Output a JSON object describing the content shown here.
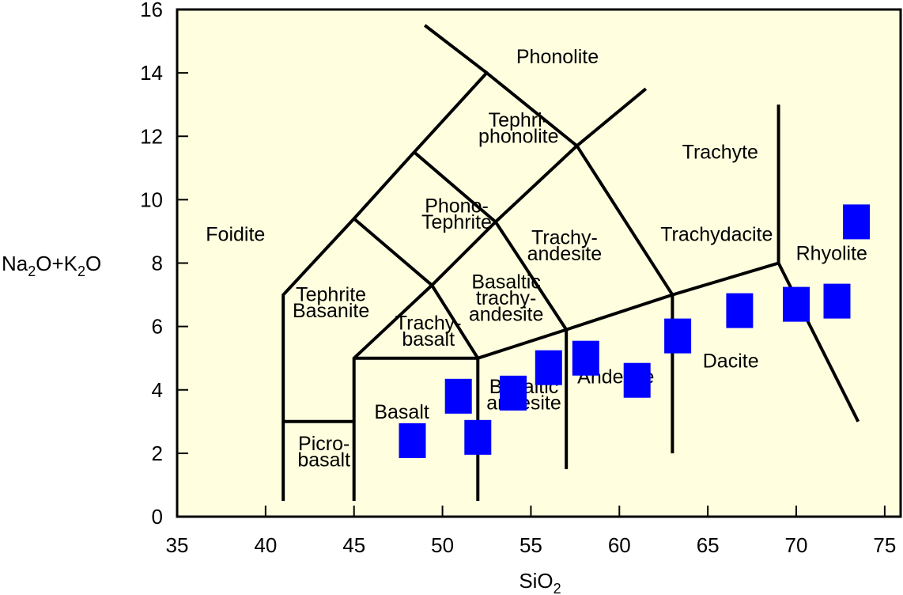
{
  "chart_data": {
    "type": "scatter",
    "title": "",
    "xlabel": {
      "main": "SiO",
      "sub": "2"
    },
    "ylabel": {
      "parts": [
        {
          "text": "Na",
          "sub": false
        },
        {
          "text": "2",
          "sub": true
        },
        {
          "text": "O+K",
          "sub": false
        },
        {
          "text": "2",
          "sub": true
        },
        {
          "text": "O",
          "sub": false
        }
      ]
    },
    "xlim": [
      35,
      75.9
    ],
    "ylim": [
      0,
      16
    ],
    "xticks": [
      35,
      40,
      45,
      50,
      55,
      60,
      65,
      70,
      75
    ],
    "yticks": [
      0,
      2,
      4,
      6,
      8,
      10,
      12,
      14,
      16
    ],
    "colors": {
      "background": "#ffffe0",
      "marker": "#0000ff",
      "lines": "#000000"
    },
    "boundaries": [
      [
        [
          41,
          0.5
        ],
        [
          41,
          7
        ],
        [
          45,
          9.4
        ],
        [
          48.4,
          11.5
        ],
        [
          52.5,
          14
        ],
        [
          57.6,
          11.7
        ],
        [
          63,
          7
        ],
        [
          63,
          2
        ]
      ],
      [
        [
          41,
          3
        ],
        [
          45,
          3
        ]
      ],
      [
        [
          45,
          0.5
        ],
        [
          45,
          5
        ],
        [
          49.4,
          7.3
        ],
        [
          53,
          9.3
        ],
        [
          57.6,
          11.7
        ],
        [
          61.5,
          13.5
        ]
      ],
      [
        [
          52,
          0.5
        ],
        [
          52,
          5
        ],
        [
          57,
          5.9
        ],
        [
          63,
          7
        ],
        [
          69,
          8
        ],
        [
          69,
          13
        ]
      ],
      [
        [
          45,
          5
        ],
        [
          52,
          5
        ]
      ],
      [
        [
          57,
          1.5
        ],
        [
          57,
          5.9
        ],
        [
          53,
          9.3
        ],
        [
          48.4,
          11.5
        ]
      ],
      [
        [
          52,
          5
        ],
        [
          49.4,
          7.3
        ],
        [
          45,
          9.4
        ]
      ],
      [
        [
          69,
          8
        ],
        [
          73.5,
          3
        ]
      ],
      [
        [
          52.5,
          14
        ],
        [
          49,
          15.5
        ]
      ]
    ],
    "fields": [
      {
        "name": "Phonolite",
        "lines": [
          "Phonolite"
        ],
        "x": 56.5,
        "y": 14.3
      },
      {
        "name": "Tephri-phonolite",
        "lines": [
          "Tephri-",
          "phonolite"
        ],
        "x": 54.3,
        "y": 12.3
      },
      {
        "name": "Trachyte",
        "lines": [
          "Trachyte"
        ],
        "x": 65.7,
        "y": 11.3
      },
      {
        "name": "Phono-Tephrite",
        "lines": [
          "Phono-",
          "Tephrite"
        ],
        "x": 50.8,
        "y": 9.6
      },
      {
        "name": "Foidite",
        "lines": [
          "Foidite"
        ],
        "x": 38.3,
        "y": 8.7
      },
      {
        "name": "Trachy-andesite",
        "lines": [
          "Trachy-",
          "andesite"
        ],
        "x": 56.9,
        "y": 8.6
      },
      {
        "name": "Trachydacite",
        "lines": [
          "Trachydacite"
        ],
        "x": 65.5,
        "y": 8.7
      },
      {
        "name": "Rhyolite",
        "lines": [
          "Rhyolite"
        ],
        "x": 72,
        "y": 8.1
      },
      {
        "name": "Tephrite Basanite",
        "lines": [
          "Tephrite",
          "Basanite"
        ],
        "x": 43.7,
        "y": 6.8
      },
      {
        "name": "Basaltic trachy-andesite",
        "lines": [
          "Basaltic",
          "trachy-",
          "andesite"
        ],
        "x": 53.6,
        "y": 7.2
      },
      {
        "name": "Trachy-basalt",
        "lines": [
          "Trachy-",
          "basalt"
        ],
        "x": 49.2,
        "y": 5.9
      },
      {
        "name": "Dacite",
        "lines": [
          "Dacite"
        ],
        "x": 66.3,
        "y": 4.7
      },
      {
        "name": "Andesite",
        "lines": [
          "Andesite"
        ],
        "x": 59.8,
        "y": 4.2
      },
      {
        "name": "Basaltic andesite",
        "lines": [
          "Basaltic",
          "andesite"
        ],
        "x": 54.6,
        "y": 3.9
      },
      {
        "name": "Basalt",
        "lines": [
          "Basalt"
        ],
        "x": 47.7,
        "y": 3.1
      },
      {
        "name": "Picro-basalt",
        "lines": [
          "Picro-",
          "basalt"
        ],
        "x": 43.3,
        "y": 2.1
      }
    ],
    "points": [
      {
        "x": 48.3,
        "y": 2.4
      },
      {
        "x": 50.9,
        "y": 3.8
      },
      {
        "x": 52,
        "y": 2.5
      },
      {
        "x": 54,
        "y": 3.9
      },
      {
        "x": 56,
        "y": 4.7
      },
      {
        "x": 58.1,
        "y": 5
      },
      {
        "x": 61,
        "y": 4.3
      },
      {
        "x": 63.3,
        "y": 5.7
      },
      {
        "x": 66.8,
        "y": 6.5
      },
      {
        "x": 70,
        "y": 6.7
      },
      {
        "x": 72.3,
        "y": 6.8
      },
      {
        "x": 73.4,
        "y": 9.3
      }
    ]
  }
}
